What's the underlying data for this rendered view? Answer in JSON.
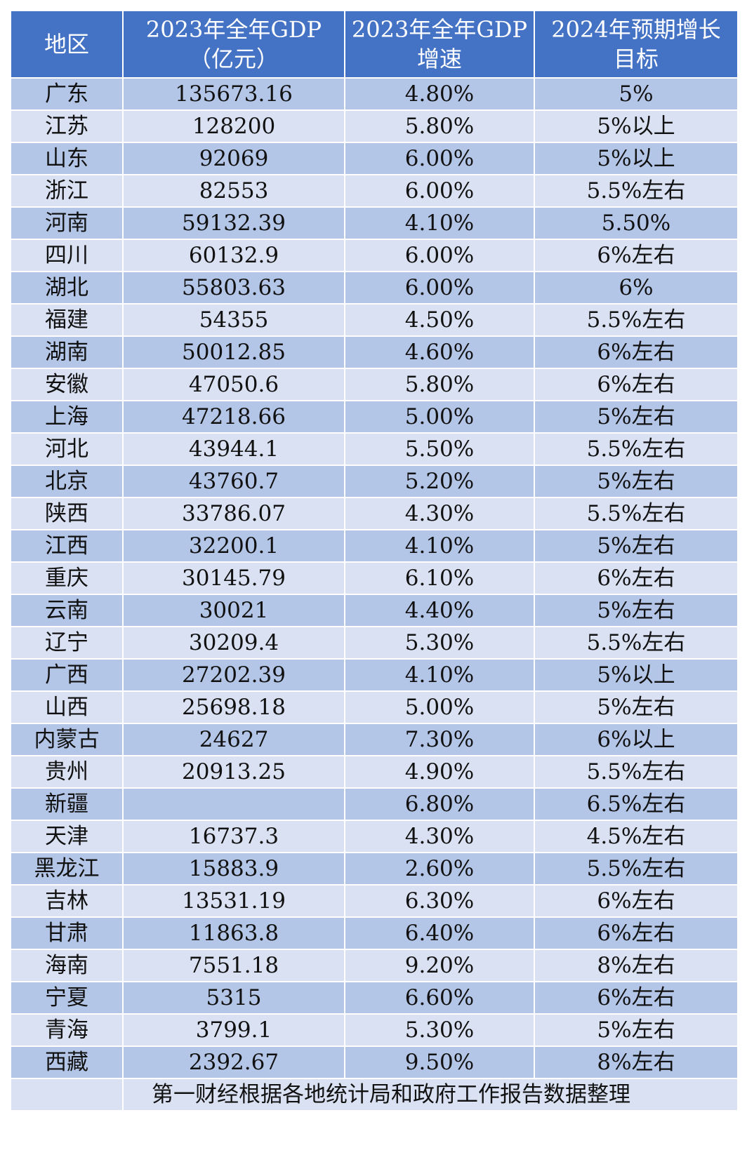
{
  "table": {
    "headers": [
      {
        "line1": "地区",
        "line2": ""
      },
      {
        "line1": "2023年全年GDP",
        "line2": "（亿元）"
      },
      {
        "line1": "2023年全年GDP",
        "line2": "增速"
      },
      {
        "line1": "2024年预期增长",
        "line2": "目标"
      }
    ],
    "rows": [
      [
        "广东",
        "135673.16",
        "4.80%",
        "5%"
      ],
      [
        "江苏",
        "128200",
        "5.80%",
        "5%以上"
      ],
      [
        "山东",
        "92069",
        "6.00%",
        "5%以上"
      ],
      [
        "浙江",
        "82553",
        "6.00%",
        "5.5%左右"
      ],
      [
        "河南",
        "59132.39",
        "4.10%",
        "5.50%"
      ],
      [
        "四川",
        "60132.9",
        "6.00%",
        "6%左右"
      ],
      [
        "湖北",
        "55803.63",
        "6.00%",
        "6%"
      ],
      [
        "福建",
        "54355",
        "4.50%",
        "5.5%左右"
      ],
      [
        "湖南",
        "50012.85",
        "4.60%",
        "6%左右"
      ],
      [
        "安徽",
        "47050.6",
        "5.80%",
        "6%左右"
      ],
      [
        "上海",
        "47218.66",
        "5.00%",
        "5%左右"
      ],
      [
        "河北",
        "43944.1",
        "5.50%",
        "5.5%左右"
      ],
      [
        "北京",
        "43760.7",
        "5.20%",
        "5%左右"
      ],
      [
        "陕西",
        "33786.07",
        "4.30%",
        "5.5%左右"
      ],
      [
        "江西",
        "32200.1",
        "4.10%",
        "5%左右"
      ],
      [
        "重庆",
        "30145.79",
        "6.10%",
        "6%左右"
      ],
      [
        "云南",
        "30021",
        "4.40%",
        "5%左右"
      ],
      [
        "辽宁",
        "30209.4",
        "5.30%",
        "5.5%左右"
      ],
      [
        "广西",
        "27202.39",
        "4.10%",
        "5%以上"
      ],
      [
        "山西",
        "25698.18",
        "5.00%",
        "5%左右"
      ],
      [
        "内蒙古",
        "24627",
        "7.30%",
        "6%以上"
      ],
      [
        "贵州",
        "20913.25",
        "4.90%",
        "5.5%左右"
      ],
      [
        "新疆",
        "",
        "6.80%",
        "6.5%左右"
      ],
      [
        "天津",
        "16737.3",
        "4.30%",
        "4.5%左右"
      ],
      [
        "黑龙江",
        "15883.9",
        "2.60%",
        "5.5%左右"
      ],
      [
        "吉林",
        "13531.19",
        "6.30%",
        "6%左右"
      ],
      [
        "甘肃",
        "11863.8",
        "6.40%",
        "6%左右"
      ],
      [
        "海南",
        "7551.18",
        "9.20%",
        "8%左右"
      ],
      [
        "宁夏",
        "5315",
        "6.60%",
        "6%左右"
      ],
      [
        "青海",
        "3799.1",
        "5.30%",
        "5%左右"
      ],
      [
        "西藏",
        "2392.67",
        "9.50%",
        "8%左右"
      ]
    ],
    "footer_note": "第一财经根据各地统计局和政府工作报告数据整理"
  },
  "colors": {
    "header_bg": "#4472c4",
    "row_dark": "#b4c6e7",
    "row_light": "#d9e1f2"
  }
}
